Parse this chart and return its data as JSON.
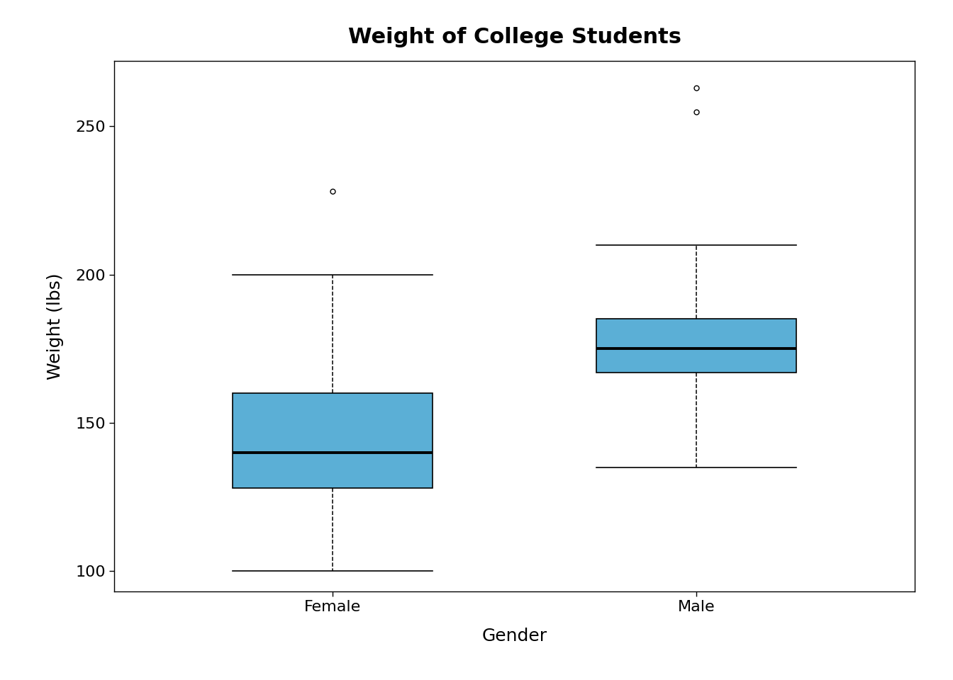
{
  "title": "Weight of College Students",
  "xlabel": "Gender",
  "ylabel": "Weight (lbs)",
  "categories": [
    "Female",
    "Male"
  ],
  "box_color": "#5BAFD6",
  "median_color": "black",
  "whisker_color": "black",
  "background_color": "white",
  "female": {
    "q1": 128,
    "median": 140,
    "q3": 160,
    "whisker_low": 100,
    "whisker_high": 200,
    "outliers": [
      228
    ]
  },
  "male": {
    "q1": 167,
    "median": 175,
    "q3": 185,
    "whisker_low": 135,
    "whisker_high": 210,
    "outliers": [
      255,
      263
    ]
  },
  "ylim": [
    93,
    272
  ],
  "yticks": [
    100,
    150,
    200,
    250
  ],
  "box_width": 0.55,
  "title_fontsize": 22,
  "label_fontsize": 18,
  "tick_fontsize": 16
}
